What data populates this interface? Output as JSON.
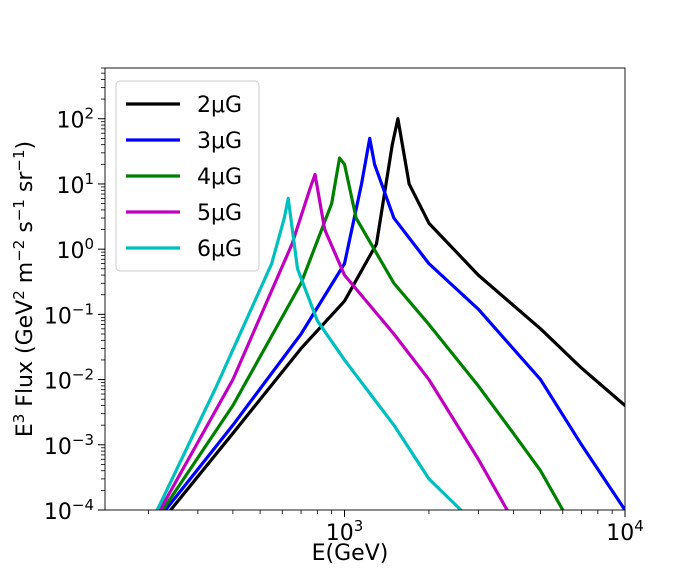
{
  "chart_data": {
    "type": "line",
    "title": "",
    "xlabel": "E(GeV)",
    "ylabel_parts": {
      "base": "E",
      "exp3": "3",
      "flux": " Flux (GeV",
      "exp2": "2",
      "m": " m",
      "expm2": "−2",
      "s": " s",
      "expm1a": "−1",
      "sr": " sr",
      "expm1b": "−1",
      "close": ")"
    },
    "x_scale": "log",
    "y_scale": "log",
    "xlim": [
      140,
      10000
    ],
    "ylim": [
      0.0001,
      600
    ],
    "x_ticks": [
      {
        "value": 1000,
        "base": "10",
        "exp": "3"
      },
      {
        "value": 10000,
        "base": "10",
        "exp": "4"
      }
    ],
    "y_ticks": [
      {
        "value": 0.0001,
        "base": "10",
        "exp": "−4"
      },
      {
        "value": 0.001,
        "base": "10",
        "exp": "−3"
      },
      {
        "value": 0.01,
        "base": "10",
        "exp": "−2"
      },
      {
        "value": 0.1,
        "base": "10",
        "exp": "−1"
      },
      {
        "value": 1,
        "base": "10",
        "exp": "0"
      },
      {
        "value": 10,
        "base": "10",
        "exp": "1"
      },
      {
        "value": 100,
        "base": "10",
        "exp": "2"
      }
    ],
    "legend_location": "upper-left",
    "series": [
      {
        "name": "2μG",
        "color": "#000000",
        "x": [
          240,
          400,
          700,
          1000,
          1300,
          1480,
          1550,
          1700,
          2000,
          3000,
          5000,
          7000,
          10000
        ],
        "y": [
          0.0001,
          0.0015,
          0.03,
          0.16,
          1.2,
          40,
          100,
          10,
          2.5,
          0.4,
          0.06,
          0.015,
          0.004
        ]
      },
      {
        "name": "3μG",
        "color": "#0000ff",
        "x": [
          230,
          400,
          700,
          1000,
          1150,
          1230,
          1280,
          1500,
          2000,
          3000,
          5000,
          7000,
          10000
        ],
        "y": [
          0.0001,
          0.002,
          0.05,
          0.6,
          10,
          50,
          20,
          3,
          0.6,
          0.12,
          0.01,
          0.001,
          0.0001
        ]
      },
      {
        "name": "4μG",
        "color": "#008000",
        "x": [
          225,
          400,
          700,
          900,
          960,
          1000,
          1100,
          1500,
          2000,
          3000,
          4000,
          5000,
          6000
        ],
        "y": [
          0.0001,
          0.004,
          0.3,
          5,
          25,
          20,
          3,
          0.3,
          0.07,
          0.008,
          0.0015,
          0.0004,
          0.0001
        ]
      },
      {
        "name": "5μG",
        "color": "#c000c0",
        "x": [
          220,
          400,
          650,
          750,
          785,
          850,
          1000,
          1500,
          2000,
          3000,
          3800
        ],
        "y": [
          0.0001,
          0.01,
          1.2,
          8,
          14,
          2,
          0.4,
          0.05,
          0.01,
          0.0006,
          0.0001
        ]
      },
      {
        "name": "6μG",
        "color": "#00bfbf",
        "x": [
          215,
          350,
          550,
          610,
          630,
          680,
          800,
          1000,
          1500,
          2000,
          2600
        ],
        "y": [
          0.0001,
          0.008,
          0.6,
          3,
          6,
          0.5,
          0.08,
          0.02,
          0.002,
          0.0003,
          0.0001
        ]
      }
    ]
  }
}
